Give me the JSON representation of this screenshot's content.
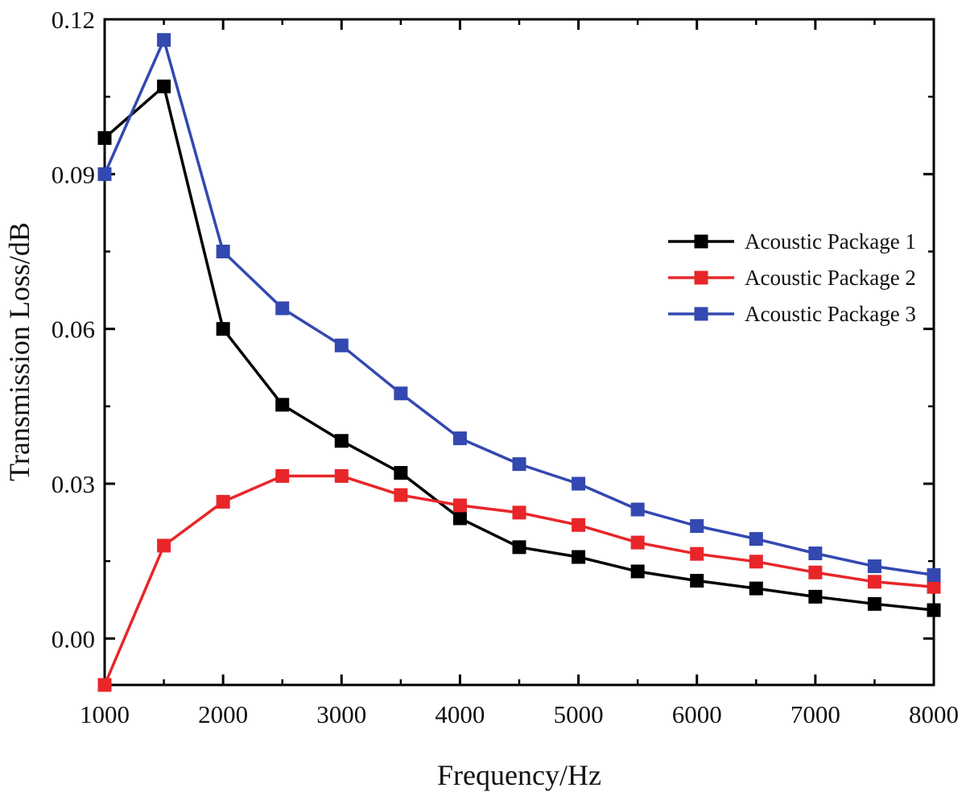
{
  "chart_data": {
    "type": "line",
    "title": "",
    "xlabel": "Frequency/Hz",
    "ylabel": "Transmission Loss/dB",
    "xlim": [
      1000,
      8000
    ],
    "ylim": [
      -0.009,
      0.12
    ],
    "xticks": [
      1000,
      2000,
      3000,
      4000,
      5000,
      6000,
      7000,
      8000
    ],
    "xtick_labels": [
      "1000",
      "2000",
      "3000",
      "4000",
      "5000",
      "6000",
      "7000",
      "8000"
    ],
    "yticks": [
      0.0,
      0.03,
      0.06,
      0.09,
      0.12
    ],
    "ytick_labels": [
      "0.00",
      "0.03",
      "0.06",
      "0.09",
      "0.12"
    ],
    "grid": false,
    "legend_position": "right",
    "marker": "square",
    "x": [
      1000,
      1500,
      2000,
      2500,
      3000,
      3500,
      4000,
      4500,
      5000,
      5500,
      6000,
      6500,
      7000,
      7500,
      8000
    ],
    "series": [
      {
        "name": "Acoustic Package 1",
        "color": "#000000",
        "values": [
          0.097,
          0.107,
          0.06,
          0.0453,
          0.0383,
          0.0321,
          0.0233,
          0.0177,
          0.0158,
          0.013,
          0.0112,
          0.0097,
          0.0081,
          0.0067,
          0.0055
        ]
      },
      {
        "name": "Acoustic Package 2",
        "color": "#e8262a",
        "values": [
          -0.009,
          0.018,
          0.0265,
          0.0315,
          0.0315,
          0.0278,
          0.0258,
          0.0244,
          0.022,
          0.0186,
          0.0164,
          0.0149,
          0.0128,
          0.011,
          0.01
        ]
      },
      {
        "name": "Acoustic Package 3",
        "color": "#3348b0",
        "values": [
          0.09,
          0.116,
          0.075,
          0.064,
          0.0568,
          0.0475,
          0.0388,
          0.0338,
          0.03,
          0.025,
          0.0218,
          0.0193,
          0.0165,
          0.014,
          0.0123
        ]
      }
    ]
  }
}
